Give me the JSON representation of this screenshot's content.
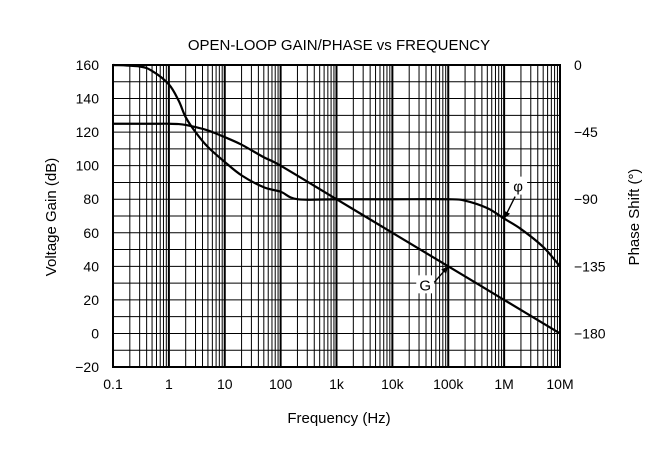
{
  "chart_data": {
    "type": "line",
    "title": "OPEN-LOOP GAIN/PHASE vs FREQUENCY",
    "xlabel": "Frequency (Hz)",
    "ylabel": "Voltage Gain (dB)",
    "y2label": "Phase Shift (°)",
    "xscale": "log",
    "xlim": [
      0.1,
      10000000
    ],
    "ylim": [
      -20,
      160
    ],
    "y2lim": [
      -202.5,
      0
    ],
    "grid": true,
    "x_ticks": [
      0.1,
      1,
      10,
      100,
      1000,
      10000,
      100000,
      1000000,
      10000000
    ],
    "x_tick_labels": [
      "0.1",
      "1",
      "10",
      "100",
      "1k",
      "10k",
      "100k",
      "1M",
      "10M"
    ],
    "y_ticks": [
      -20,
      0,
      20,
      40,
      60,
      80,
      100,
      120,
      140,
      160
    ],
    "y_tick_labels": [
      "−20",
      "0",
      "20",
      "40",
      "60",
      "80",
      "100",
      "120",
      "140",
      "160"
    ],
    "y2_ticks": [
      0,
      -45,
      -90,
      -135,
      -180
    ],
    "y2_tick_labels": [
      "0",
      "−45",
      "−90",
      "−135",
      "−180"
    ],
    "series": [
      {
        "name": "G",
        "axis": "left",
        "x": [
          0.1,
          0.3,
          0.7,
          1,
          1.5,
          2,
          3,
          5,
          10,
          20,
          50,
          100,
          1000,
          10000,
          100000,
          1000000,
          10000000
        ],
        "y": [
          125,
          125,
          125,
          125,
          124.8,
          124.3,
          123,
          121,
          117,
          112.5,
          105,
          100,
          80,
          60,
          40,
          20,
          0
        ]
      },
      {
        "name": "φ",
        "axis": "right",
        "x": [
          0.1,
          0.3,
          0.5,
          1,
          1.5,
          2,
          3,
          5,
          10,
          20,
          50,
          100,
          200,
          1000,
          10000,
          100000,
          200000,
          500000,
          1000000,
          2000000,
          5000000,
          10000000
        ],
        "y": [
          0,
          -1,
          -4,
          -13,
          -24,
          -35,
          -45,
          -55,
          -65,
          -74,
          -82,
          -85,
          -90,
          -90,
          -90,
          -90,
          -91,
          -96,
          -103,
          -110,
          -122,
          -135
        ]
      }
    ],
    "annotations": [
      {
        "text": "G",
        "series": "G",
        "x": 100000
      },
      {
        "text": "φ",
        "series": "φ",
        "x": 1000000
      }
    ]
  }
}
